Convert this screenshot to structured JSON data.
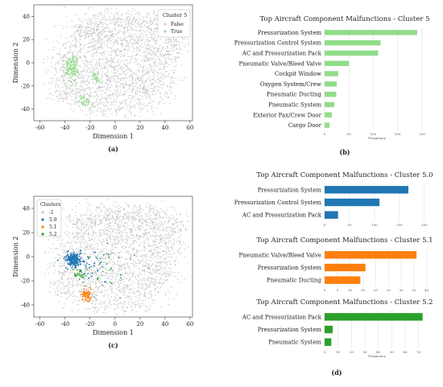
{
  "colors": {
    "gray": "#c8c8c8",
    "green": "#90dd88",
    "blue": "#1f77b4",
    "orange": "#ff7f0e",
    "green2": "#2ca02c",
    "grid": "#e0e0e0"
  },
  "chart_data": [
    {
      "id": "a",
      "type": "scatter",
      "caption": "(a)",
      "xlabel": "Dimension 1",
      "ylabel": "Dimension 2",
      "xlim": [
        -65,
        62
      ],
      "ylim": [
        -50,
        50
      ],
      "xticks": [
        -60,
        -40,
        -20,
        0,
        20,
        40,
        60
      ],
      "yticks": [
        -40,
        -20,
        0,
        20,
        40
      ],
      "legend": {
        "title": "Cluster 5",
        "position": "top-right",
        "entries": [
          "False",
          "True"
        ]
      },
      "series": [
        {
          "name": "False",
          "color": "#c8c8c8",
          "points_shown": "background t-SNE embedding"
        },
        {
          "name": "True",
          "color": "#90dd88",
          "points_shown": "clusters near (-35,-5), (-25,-35), (-15,-15)"
        }
      ]
    },
    {
      "id": "b",
      "type": "bar",
      "orientation": "horizontal",
      "caption": "(b)",
      "title": "Top Aircraft Component Malfunctions - Cluster 5",
      "xlabel": "Frequency",
      "xlim": [
        0,
        215
      ],
      "xticks": [
        0,
        50,
        100,
        150,
        200
      ],
      "color": "#90dd88",
      "categories": [
        "Pressurization System",
        "Pressurization Control System",
        "AC and Pressurization Pack",
        "Pneumatic Valve/Bleed Valve",
        "Cockpit Window",
        "Oxygen System/Crew",
        "Pneumatic Ducting",
        "Pneumatic System",
        "Exterior Pax/Crew Door",
        "Cargo Door"
      ],
      "values": [
        190,
        115,
        110,
        50,
        28,
        25,
        24,
        20,
        15,
        10
      ]
    },
    {
      "id": "c",
      "type": "scatter",
      "caption": "(c)",
      "xlabel": "Dimension 1",
      "ylabel": "Dimension 2",
      "xlim": [
        -65,
        62
      ],
      "ylim": [
        -50,
        50
      ],
      "xticks": [
        -60,
        -40,
        -20,
        0,
        20,
        40,
        60
      ],
      "yticks": [
        -40,
        -20,
        0,
        20,
        40
      ],
      "legend": {
        "title": "Clusters",
        "position": "top-left",
        "entries": [
          "-1",
          "5.0",
          "5.1",
          "5.2"
        ]
      },
      "series": [
        {
          "name": "-1",
          "color": "#c8c8c8"
        },
        {
          "name": "5.0",
          "color": "#1f77b4"
        },
        {
          "name": "5.1",
          "color": "#ff7f0e"
        },
        {
          "name": "5.2",
          "color": "#2ca02c"
        }
      ]
    },
    {
      "id": "d1",
      "type": "bar",
      "orientation": "horizontal",
      "title": "Top Aircraft Component Malfunctions - Cluster 5.0",
      "xlim": [
        0,
        210
      ],
      "xticks": [
        0,
        50,
        100,
        150,
        200
      ],
      "color": "#1f77b4",
      "categories": [
        "Pressurization System",
        "Pressurization Control System",
        "AC and Pressurization Pack"
      ],
      "values": [
        168,
        110,
        27
      ]
    },
    {
      "id": "d2",
      "type": "bar",
      "orientation": "horizontal",
      "title": "Top Aircraft Component Malfunctions - Cluster 5.1",
      "xlim": [
        0,
        41
      ],
      "xticks": [
        0,
        5,
        10,
        15,
        20,
        25,
        30,
        35,
        40
      ],
      "color": "#ff7f0e",
      "categories": [
        "Pneumatic Valve/Bleed Valve",
        "Pressurization System",
        "Pneumatic Ducting"
      ],
      "values": [
        36,
        16,
        14
      ]
    },
    {
      "id": "d3",
      "type": "bar",
      "orientation": "horizontal",
      "title": "Top Aircraft Component Malfunctions - Cluster 5.2",
      "xlabel": "Frequency",
      "xlim": [
        0,
        78
      ],
      "xticks": [
        0,
        10,
        20,
        30,
        40,
        50,
        60,
        70
      ],
      "color": "#2ca02c",
      "categories": [
        "AC and Pressurization Pack",
        "Pressurization System",
        "Pneumatic System"
      ],
      "values": [
        73,
        6,
        5
      ]
    }
  ],
  "caption_d": "(d)"
}
